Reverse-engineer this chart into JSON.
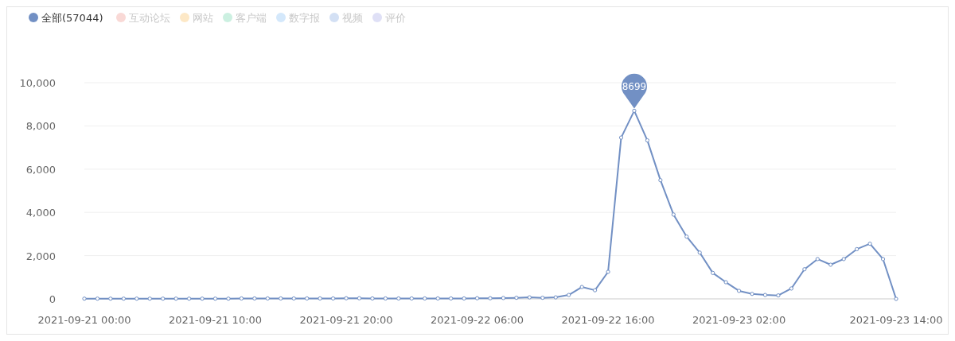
{
  "chart_data": {
    "type": "line",
    "legend": "top left",
    "grid": "y",
    "marker": "circle",
    "line_style": "solid",
    "x": [
      "2021-09-21T00:00",
      "2021-09-21T01:00",
      "2021-09-21T02:00",
      "2021-09-21T03:00",
      "2021-09-21T04:00",
      "2021-09-21T05:00",
      "2021-09-21T06:00",
      "2021-09-21T07:00",
      "2021-09-21T08:00",
      "2021-09-21T09:00",
      "2021-09-21T10:00",
      "2021-09-21T11:00",
      "2021-09-21T12:00",
      "2021-09-21T13:00",
      "2021-09-21T14:00",
      "2021-09-21T15:00",
      "2021-09-21T16:00",
      "2021-09-21T17:00",
      "2021-09-21T18:00",
      "2021-09-21T19:00",
      "2021-09-21T20:00",
      "2021-09-21T21:00",
      "2021-09-21T22:00",
      "2021-09-21T23:00",
      "2021-09-22T00:00",
      "2021-09-22T01:00",
      "2021-09-22T02:00",
      "2021-09-22T03:00",
      "2021-09-22T04:00",
      "2021-09-22T05:00",
      "2021-09-22T06:00",
      "2021-09-22T07:00",
      "2021-09-22T08:00",
      "2021-09-22T09:00",
      "2021-09-22T10:00",
      "2021-09-22T11:00",
      "2021-09-22T12:00",
      "2021-09-22T13:00",
      "2021-09-22T14:00",
      "2021-09-22T15:00",
      "2021-09-22T16:00",
      "2021-09-22T17:00",
      "2021-09-22T18:00",
      "2021-09-22T19:00",
      "2021-09-22T20:00",
      "2021-09-22T21:00",
      "2021-09-22T22:00",
      "2021-09-22T23:00",
      "2021-09-23T00:00",
      "2021-09-23T01:00",
      "2021-09-23T02:00",
      "2021-09-23T03:00",
      "2021-09-23T04:00",
      "2021-09-23T05:00",
      "2021-09-23T06:00",
      "2021-09-23T07:00",
      "2021-09-23T08:00",
      "2021-09-23T09:00",
      "2021-09-23T10:00",
      "2021-09-23T11:00",
      "2021-09-23T12:00",
      "2021-09-23T13:00",
      "2021-09-23T14:00"
    ],
    "xlim": [
      "2021-09-21T00:00",
      "2021-09-23T14:00"
    ],
    "xticks": [
      {
        "value": "2021-09-21T00:00",
        "label": "2021-09-21 00:00"
      },
      {
        "value": "2021-09-21T10:00",
        "label": "2021-09-21 10:00"
      },
      {
        "value": "2021-09-21T20:00",
        "label": "2021-09-21 20:00"
      },
      {
        "value": "2021-09-22T06:00",
        "label": "2021-09-22 06:00"
      },
      {
        "value": "2021-09-22T16:00",
        "label": "2021-09-22 16:00"
      },
      {
        "value": "2021-09-23T02:00",
        "label": "2021-09-23 02:00"
      },
      {
        "value": "2021-09-23T14:00",
        "label": "2021-09-23 14:00"
      }
    ],
    "ylim": [
      0,
      10000
    ],
    "yticks": [
      0,
      {
        "value": 2000,
        "label": "2,000"
      },
      {
        "value": 4000,
        "label": "4,000"
      },
      {
        "value": 6000,
        "label": "6,000"
      },
      {
        "value": 8000,
        "label": "8,000"
      },
      {
        "value": 10000,
        "label": "10,000"
      }
    ],
    "series": [
      {
        "name": "全部(57044)",
        "color": "#7290c4",
        "values": [
          10,
          10,
          10,
          10,
          10,
          10,
          10,
          10,
          10,
          10,
          10,
          10,
          20,
          20,
          20,
          20,
          20,
          20,
          20,
          20,
          30,
          30,
          20,
          20,
          20,
          20,
          20,
          20,
          20,
          20,
          30,
          30,
          40,
          50,
          70,
          50,
          70,
          180,
          550,
          400,
          1250,
          7460,
          8699,
          7330,
          5490,
          3900,
          2880,
          2140,
          1200,
          770,
          370,
          230,
          180,
          160,
          480,
          1370,
          1840,
          1580,
          1840,
          2300,
          2550,
          1840,
          0
        ]
      },
      {
        "name": "互动论坛",
        "color": "#f9d9d6",
        "values": [
          null,
          null,
          null,
          null,
          null,
          null,
          null,
          null,
          null,
          null,
          null,
          null,
          null,
          null,
          null,
          null,
          null,
          null,
          null,
          null,
          null,
          null,
          null,
          null,
          null,
          null,
          null,
          null,
          null,
          null,
          null,
          null,
          null,
          null,
          null,
          null,
          null,
          null,
          null,
          null,
          null,
          null,
          null,
          null,
          null,
          null,
          null,
          null,
          null,
          null,
          null,
          null,
          null,
          null,
          null,
          null,
          null,
          null,
          null,
          null,
          null,
          null,
          null
        ]
      },
      {
        "name": "网站",
        "color": "#fde8c6",
        "values": [
          null,
          null,
          null,
          null,
          null,
          null,
          null,
          null,
          null,
          null,
          null,
          null,
          null,
          null,
          null,
          null,
          null,
          null,
          null,
          null,
          null,
          null,
          null,
          null,
          null,
          null,
          null,
          null,
          null,
          null,
          null,
          null,
          null,
          null,
          null,
          null,
          null,
          null,
          null,
          null,
          null,
          null,
          null,
          null,
          null,
          null,
          null,
          null,
          null,
          null,
          null,
          null,
          null,
          null,
          null,
          null,
          null,
          null,
          null,
          null,
          null,
          null,
          null
        ]
      },
      {
        "name": "客户端",
        "color": "#ccf0e1",
        "values": [
          null,
          null,
          null,
          null,
          null,
          null,
          null,
          null,
          null,
          null,
          null,
          null,
          null,
          null,
          null,
          null,
          null,
          null,
          null,
          null,
          null,
          null,
          null,
          null,
          null,
          null,
          null,
          null,
          null,
          null,
          null,
          null,
          null,
          null,
          null,
          null,
          null,
          null,
          null,
          null,
          null,
          null,
          null,
          null,
          null,
          null,
          null,
          null,
          null,
          null,
          null,
          null,
          null,
          null,
          null,
          null,
          null,
          null,
          null,
          null,
          null,
          null,
          null
        ]
      },
      {
        "name": "数字报",
        "color": "#d4e8fb",
        "values": [
          null,
          null,
          null,
          null,
          null,
          null,
          null,
          null,
          null,
          null,
          null,
          null,
          null,
          null,
          null,
          null,
          null,
          null,
          null,
          null,
          null,
          null,
          null,
          null,
          null,
          null,
          null,
          null,
          null,
          null,
          null,
          null,
          null,
          null,
          null,
          null,
          null,
          null,
          null,
          null,
          null,
          null,
          null,
          null,
          null,
          null,
          null,
          null,
          null,
          null,
          null,
          null,
          null,
          null,
          null,
          null,
          null,
          null,
          null,
          null,
          null,
          null,
          null
        ]
      },
      {
        "name": "视频",
        "color": "#d3e0f4",
        "values": [
          null,
          null,
          null,
          null,
          null,
          null,
          null,
          null,
          null,
          null,
          null,
          null,
          null,
          null,
          null,
          null,
          null,
          null,
          null,
          null,
          null,
          null,
          null,
          null,
          null,
          null,
          null,
          null,
          null,
          null,
          null,
          null,
          null,
          null,
          null,
          null,
          null,
          null,
          null,
          null,
          null,
          null,
          null,
          null,
          null,
          null,
          null,
          null,
          null,
          null,
          null,
          null,
          null,
          null,
          null,
          null,
          null,
          null,
          null,
          null,
          null,
          null,
          null
        ]
      },
      {
        "name": "评价",
        "color": "#dfe0f6",
        "values": [
          null,
          null,
          null,
          null,
          null,
          null,
          null,
          null,
          null,
          null,
          null,
          null,
          null,
          null,
          null,
          null,
          null,
          null,
          null,
          null,
          null,
          null,
          null,
          null,
          null,
          null,
          null,
          null,
          null,
          null,
          null,
          null,
          null,
          null,
          null,
          null,
          null,
          null,
          null,
          null,
          null,
          null,
          null,
          null,
          null,
          null,
          null,
          null,
          null,
          null,
          null,
          null,
          null,
          null,
          null,
          null,
          null,
          null,
          null,
          null,
          null,
          null,
          null
        ]
      }
    ],
    "annotations": [
      {
        "text": "8699",
        "x": "2021-09-22T18:00",
        "y": 8699
      }
    ]
  }
}
